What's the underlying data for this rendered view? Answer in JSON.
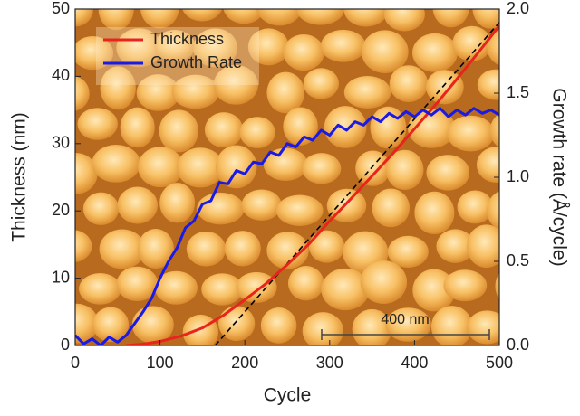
{
  "chart_data": {
    "type": "line",
    "xlabel": "Cycle",
    "ylabel": "Thickness (nm)",
    "y2label": "Growth rate (Å/cycle)",
    "xlim": [
      0,
      500
    ],
    "xticks": [
      0,
      100,
      200,
      300,
      400,
      500
    ],
    "ylim": [
      0,
      50
    ],
    "yticks": [
      0,
      10,
      20,
      30,
      40,
      50
    ],
    "y2lim": [
      0,
      2
    ],
    "y2ticks": [
      {
        "value": 0,
        "label": "0.0"
      },
      0.5,
      {
        "value": 1,
        "label": "1.0"
      },
      1.5,
      {
        "value": 2,
        "label": "2.0"
      }
    ],
    "legend": "upper left",
    "annotations": [
      "400 nm"
    ],
    "series": [
      {
        "name": "Thickness",
        "color": "#e8241c",
        "axis": "y",
        "x": [
          60,
          80,
          100,
          125,
          150,
          175,
          200,
          225,
          250,
          275,
          300,
          325,
          350,
          375,
          400,
          425,
          450,
          475,
          500
        ],
        "values": [
          0,
          0.2,
          0.6,
          1.4,
          2.6,
          4.5,
          6.8,
          9.2,
          12,
          15,
          18.5,
          21.8,
          25.2,
          28.6,
          32.2,
          35.8,
          39.6,
          43.5,
          47.5
        ]
      },
      {
        "name": "Growth Rate",
        "color": "#1a1ae6",
        "axis": "y2",
        "x": [
          0,
          10,
          20,
          30,
          40,
          50,
          60,
          70,
          80,
          90,
          100,
          110,
          120,
          130,
          140,
          150,
          160,
          170,
          180,
          190,
          200,
          210,
          220,
          230,
          240,
          250,
          260,
          270,
          280,
          290,
          300,
          310,
          320,
          330,
          340,
          350,
          360,
          370,
          380,
          390,
          400,
          410,
          420,
          430,
          440,
          450,
          460,
          470,
          480,
          490,
          500
        ],
        "values": [
          0.06,
          0.01,
          0.04,
          0.0,
          0.05,
          0.02,
          0.06,
          0.13,
          0.2,
          0.28,
          0.4,
          0.5,
          0.58,
          0.7,
          0.74,
          0.84,
          0.86,
          0.97,
          0.96,
          1.04,
          1.02,
          1.09,
          1.08,
          1.15,
          1.13,
          1.2,
          1.18,
          1.24,
          1.22,
          1.28,
          1.25,
          1.31,
          1.28,
          1.33,
          1.31,
          1.36,
          1.33,
          1.38,
          1.35,
          1.39,
          1.36,
          1.4,
          1.37,
          1.41,
          1.36,
          1.4,
          1.37,
          1.41,
          1.38,
          1.4,
          1.37
        ]
      },
      {
        "color": "#000000",
        "axis": "y",
        "dashed": true,
        "x": [
          165,
          500
        ],
        "values": [
          0,
          48
        ]
      }
    ]
  }
}
